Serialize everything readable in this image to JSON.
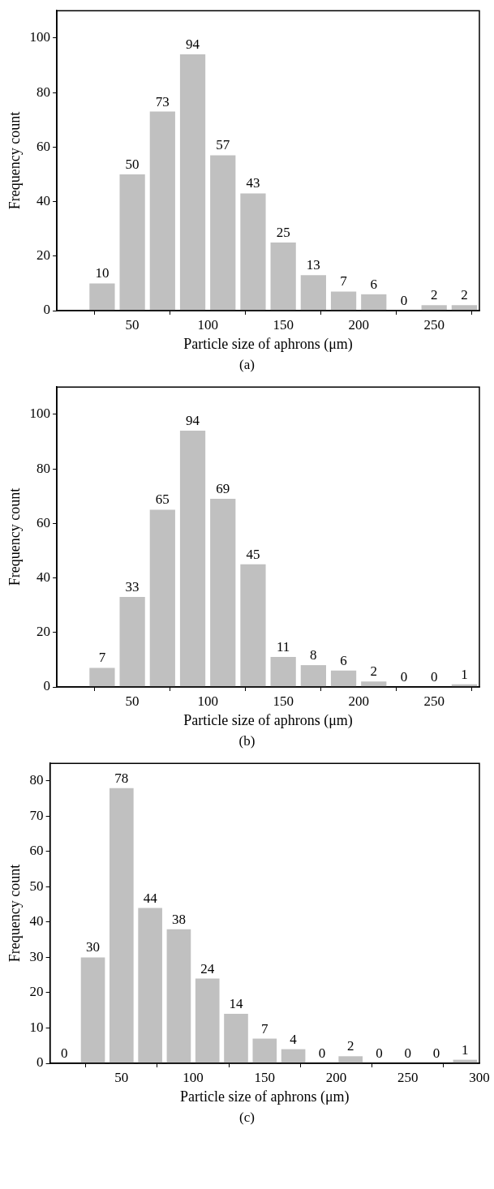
{
  "chart_data": [
    {
      "type": "histogram",
      "xlabel": "Particle size of aphrons (μm)",
      "ylabel": "Frequency count",
      "bins": [
        20,
        40,
        60,
        80,
        100,
        120,
        140,
        160,
        180,
        200,
        220,
        240,
        260,
        280
      ],
      "values": [
        10,
        50,
        73,
        94,
        57,
        43,
        25,
        13,
        7,
        6,
        0,
        2,
        2
      ],
      "color": "#c0c0c0",
      "xlim": [
        0,
        280
      ],
      "xticks": [
        50,
        100,
        150,
        200,
        250
      ],
      "ylim": [
        0,
        110
      ],
      "yticks": [
        0,
        20,
        40,
        60,
        80,
        100
      ],
      "data_labels": true,
      "annotations": [
        "(a)"
      ]
    },
    {
      "type": "histogram",
      "xlabel": "Particle size of aphrons (μm)",
      "ylabel": "Frequency count",
      "bins": [
        20,
        40,
        60,
        80,
        100,
        120,
        140,
        160,
        180,
        200,
        220,
        240,
        260,
        280
      ],
      "values": [
        7,
        33,
        65,
        94,
        69,
        45,
        11,
        8,
        6,
        2,
        0,
        0,
        1
      ],
      "color": "#c0c0c0",
      "xlim": [
        0,
        280
      ],
      "xticks": [
        50,
        100,
        150,
        200,
        250
      ],
      "ylim": [
        0,
        110
      ],
      "yticks": [
        0,
        20,
        40,
        60,
        80,
        100
      ],
      "data_labels": true,
      "annotations": [
        "(b)"
      ]
    },
    {
      "type": "histogram",
      "xlabel": "Particle size of aphrons (μm)",
      "ylabel": "Frequency count",
      "bins": [
        0,
        20,
        40,
        60,
        80,
        100,
        120,
        140,
        160,
        180,
        200,
        220,
        240,
        260,
        280,
        300
      ],
      "values": [
        0,
        30,
        78,
        44,
        38,
        24,
        14,
        7,
        4,
        0,
        2,
        0,
        0,
        0,
        1
      ],
      "color": "#c0c0c0",
      "xlim": [
        0,
        300
      ],
      "xticks": [
        50,
        100,
        150,
        200,
        250,
        300
      ],
      "ylim": [
        0,
        85
      ],
      "yticks": [
        0,
        10,
        20,
        30,
        40,
        50,
        60,
        70,
        80
      ],
      "data_labels": true,
      "annotations": [
        "(c)"
      ]
    }
  ]
}
